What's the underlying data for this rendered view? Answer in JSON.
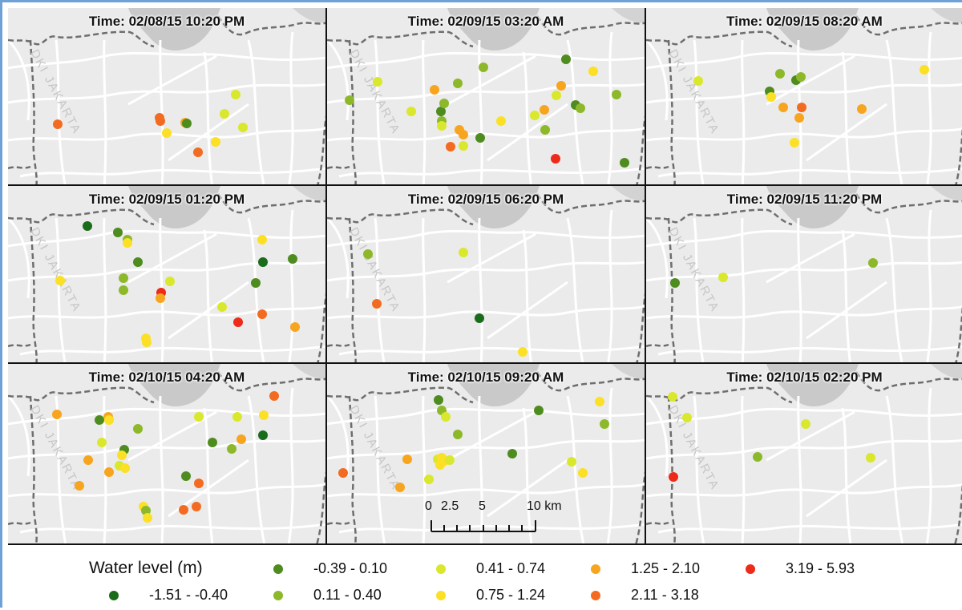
{
  "legend": {
    "title": "Water level (m)",
    "classes": [
      {
        "key": "c1",
        "label": "-1.51 - -0.40",
        "color": "#1a6b1a"
      },
      {
        "key": "c2",
        "label": "-0.39 - 0.10",
        "color": "#4e8c1f"
      },
      {
        "key": "c3",
        "label": "0.11 - 0.40",
        "color": "#8db82a"
      },
      {
        "key": "c4",
        "label": "0.41 - 0.74",
        "color": "#d9e82c"
      },
      {
        "key": "c5",
        "label": "0.75 - 1.24",
        "color": "#fbe025"
      },
      {
        "key": "c6",
        "label": "1.25 - 2.10",
        "color": "#f7a51f"
      },
      {
        "key": "c7",
        "label": "2.11 - 3.18",
        "color": "#f26b21"
      },
      {
        "key": "c8",
        "label": "3.19 - 5.93",
        "color": "#ee2a19"
      }
    ]
  },
  "map_label": "DKI JAKARTA",
  "scalebar": {
    "labels": [
      "0",
      "2.5",
      "5",
      "10 km"
    ]
  },
  "panels": [
    {
      "time": "Time: 02/08/15 10:20 PM"
    },
    {
      "time": "Time: 02/09/15 03:20 AM"
    },
    {
      "time": "Time: 02/09/15 08:20 AM"
    },
    {
      "time": "Time: 02/09/15 01:20 PM"
    },
    {
      "time": "Time: 02/09/15 06:20 PM"
    },
    {
      "time": "Time: 02/09/15 11:20 PM"
    },
    {
      "time": "Time: 02/10/15 04:20 AM"
    },
    {
      "time": "Time: 02/10/15 09:20 AM"
    },
    {
      "time": "Time: 02/10/15 02:20 PM"
    }
  ]
}
